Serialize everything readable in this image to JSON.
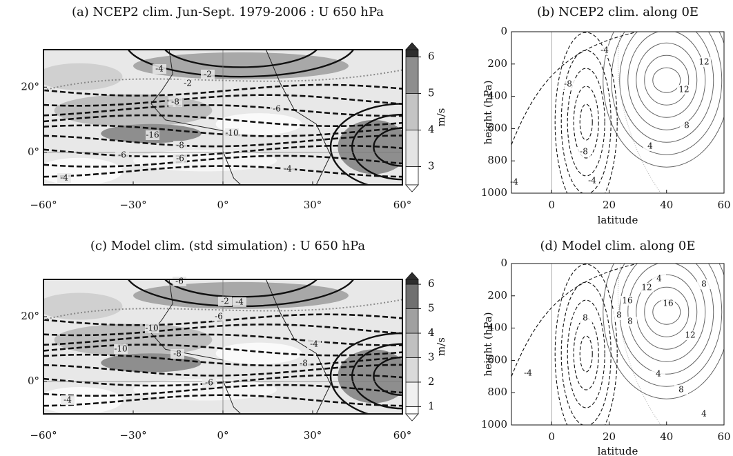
{
  "chart_data": [
    {
      "type": "contour",
      "title": "(a) NCEP2 clim. Jun-Sept. 1979-2006 : U 650 hPa",
      "xlim": [
        -60,
        60
      ],
      "ylim": [
        -10,
        31.5
      ],
      "xticks": [
        {
          "value": -60,
          "label": "−60°"
        },
        {
          "value": -30,
          "label": "−30°"
        },
        {
          "value": 0,
          "label": "0°"
        },
        {
          "value": 30,
          "label": "30°"
        },
        {
          "value": 60,
          "label": "60°"
        }
      ],
      "yticks": [
        {
          "value": 0,
          "label": "0°"
        },
        {
          "value": 20,
          "label": "20°"
        }
      ],
      "colorbar": {
        "label": "m/s",
        "lim": [
          2.5,
          6.2
        ],
        "ticks": [
          3,
          4,
          5,
          6
        ],
        "colors": [
          "#ffffff",
          "#e4e4e4",
          "#c4c4c4",
          "#8e8e8e",
          "#2e2e2e"
        ]
      },
      "contour_labels": [
        -4,
        -2,
        -2,
        -8,
        -6,
        -16,
        -8,
        -10,
        -6,
        -6,
        -4,
        -4
      ]
    },
    {
      "type": "profile",
      "title": "(b) NCEP2 clim. along 0E",
      "xlabel": "latitude",
      "ylabel": "height (hPa)",
      "xlim": [
        -14,
        60
      ],
      "ylim": [
        1000,
        0
      ],
      "xticks": [
        0,
        20,
        40,
        60
      ],
      "yticks": [
        0,
        200,
        400,
        600,
        800,
        1000
      ],
      "contour_labels": [
        -4,
        -8,
        -8,
        -4,
        12,
        12,
        8,
        4,
        -4
      ]
    },
    {
      "type": "contour",
      "title": "(c) Model clim. (std simulation) : U 650 hPa",
      "xlim": [
        -60,
        60
      ],
      "ylim": [
        -10,
        31.5
      ],
      "xticks": [
        {
          "value": -60,
          "label": "−60°"
        },
        {
          "value": -30,
          "label": "−30°"
        },
        {
          "value": 0,
          "label": "0°"
        },
        {
          "value": 30,
          "label": "30°"
        },
        {
          "value": 60,
          "label": "60°"
        }
      ],
      "yticks": [
        {
          "value": 0,
          "label": "0°"
        },
        {
          "value": 20,
          "label": "20°"
        }
      ],
      "colorbar": {
        "label": "m/s",
        "lim": [
          0.7,
          6.2
        ],
        "ticks": [
          1,
          2,
          3,
          4,
          5,
          6
        ],
        "colors": [
          "#ffffff",
          "#f0f0f0",
          "#dadada",
          "#c0c0c0",
          "#a0a0a0",
          "#707070",
          "#2e2e2e"
        ]
      },
      "contour_labels": [
        -6,
        -2,
        -4,
        -10,
        -10,
        -6,
        -8,
        -8,
        -4,
        -6,
        -4
      ]
    },
    {
      "type": "profile",
      "title": "(d) Model clim. along 0E",
      "xlabel": "latitude",
      "ylabel": "height (hPa)",
      "xlim": [
        -14,
        60
      ],
      "ylim": [
        1000,
        0
      ],
      "xticks": [
        0,
        20,
        40,
        60
      ],
      "yticks": [
        0,
        200,
        400,
        600,
        800,
        1000
      ],
      "contour_labels": [
        4,
        12,
        16,
        8,
        8,
        16,
        8,
        8,
        12,
        4,
        8,
        4,
        -4
      ]
    }
  ]
}
